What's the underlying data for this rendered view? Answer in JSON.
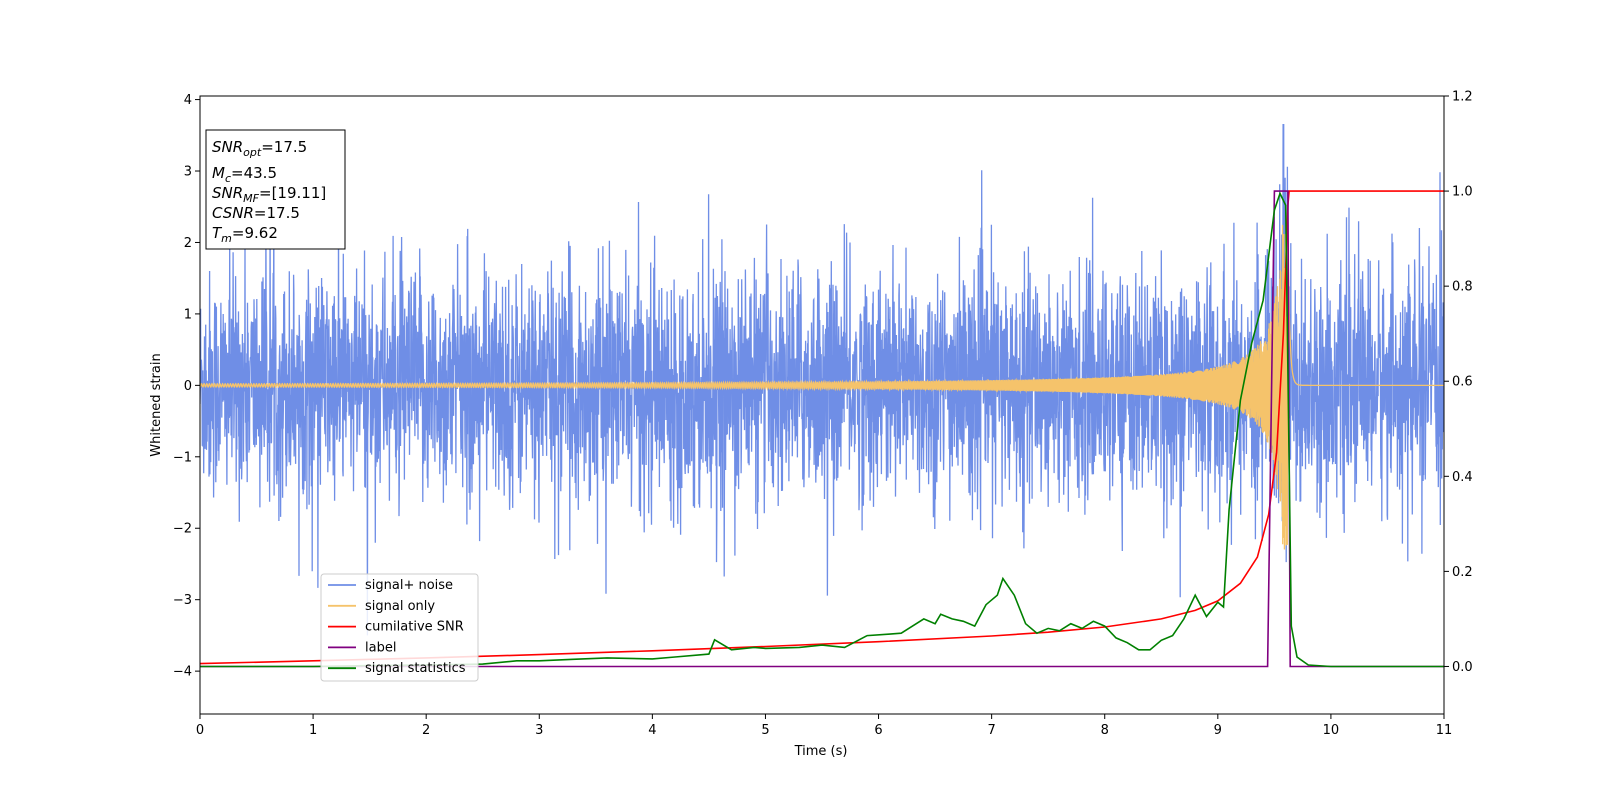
{
  "chart_data": {
    "type": "line",
    "xlabel": "Time (s)",
    "ylabel": "Whitened strain",
    "xlim": [
      0,
      11
    ],
    "ylim_left": [
      -4.6,
      4.05
    ],
    "ylim_right": [
      -0.1,
      1.2
    ],
    "xticks": [
      "0",
      "1",
      "2",
      "3",
      "4",
      "5",
      "6",
      "7",
      "8",
      "9",
      "10",
      "11"
    ],
    "yticks_left": [
      "−4",
      "−3",
      "−2",
      "−1",
      "0",
      "1",
      "2",
      "3",
      "4"
    ],
    "yticks_right": [
      "0.0",
      "0.2",
      "0.4",
      "0.6",
      "0.8",
      "1.0",
      "1.2"
    ],
    "info_box": {
      "snr_opt": {
        "sym": "SNR",
        "sub": "opt",
        "value": "=17.5"
      },
      "mc": {
        "sym": "M",
        "sub": "c",
        "value": "=43.5"
      },
      "snr_mf": {
        "sym": "SNR",
        "sub": "MF",
        "value": "=[19.11]"
      },
      "csnr": {
        "sym": "CSNR",
        "value": "=17.5"
      },
      "tm": {
        "sym": "T",
        "sub": "m",
        "value": "=9.62"
      }
    },
    "legend_position": "lower-left",
    "series": [
      {
        "name": "signal+ noise",
        "axis": "left",
        "color": "#6f8ee6",
        "description_values": {
          "typical_amplitude": 1.0,
          "peak_max": 3.65,
          "peak_time": 9.58
        }
      },
      {
        "name": "signal only",
        "axis": "left",
        "color": "#f5c36b",
        "chirp": {
          "amplitude_early": 0.02,
          "amplitude_peak": 2.3,
          "merger_time": 9.62
        }
      },
      {
        "name": "cumilative SNR",
        "axis": "right",
        "color": "#ff0000",
        "x": [
          0,
          1,
          2,
          3,
          4,
          5,
          6,
          7,
          7.5,
          8,
          8.5,
          8.8,
          9,
          9.2,
          9.35,
          9.45,
          9.52,
          9.58,
          9.62,
          9.63,
          11
        ],
        "y": [
          0.006,
          0.012,
          0.018,
          0.025,
          0.033,
          0.042,
          0.052,
          0.064,
          0.072,
          0.083,
          0.1,
          0.118,
          0.138,
          0.175,
          0.23,
          0.32,
          0.45,
          0.7,
          0.97,
          1.0,
          1.0
        ]
      },
      {
        "name": "label",
        "axis": "right",
        "color": "#800080",
        "x": [
          0,
          9.44,
          9.5,
          9.62,
          9.64,
          11
        ],
        "y": [
          0,
          0,
          1.0,
          1.0,
          0,
          0
        ]
      },
      {
        "name": "signal statistics",
        "axis": "right",
        "color": "#008000",
        "x": [
          0,
          0.5,
          1,
          1.5,
          2,
          2.5,
          2.8,
          3,
          3.3,
          3.6,
          4,
          4.2,
          4.5,
          4.55,
          4.7,
          4.9,
          5.0,
          5.3,
          5.5,
          5.7,
          5.9,
          6.1,
          6.2,
          6.3,
          6.4,
          6.5,
          6.55,
          6.65,
          6.75,
          6.85,
          6.95,
          7.05,
          7.1,
          7.2,
          7.3,
          7.4,
          7.5,
          7.6,
          7.7,
          7.8,
          7.9,
          8.0,
          8.1,
          8.2,
          8.3,
          8.4,
          8.5,
          8.6,
          8.7,
          8.8,
          8.9,
          9.0,
          9.05,
          9.1,
          9.2,
          9.3,
          9.4,
          9.5,
          9.55,
          9.6,
          9.65,
          9.7,
          9.8,
          10,
          11
        ],
        "y": [
          0.0,
          0.0,
          0.0,
          0.002,
          0.003,
          0.005,
          0.012,
          0.012,
          0.015,
          0.018,
          0.016,
          0.02,
          0.026,
          0.056,
          0.035,
          0.04,
          0.038,
          0.04,
          0.045,
          0.04,
          0.065,
          0.068,
          0.07,
          0.085,
          0.1,
          0.09,
          0.11,
          0.1,
          0.095,
          0.085,
          0.13,
          0.15,
          0.185,
          0.15,
          0.09,
          0.07,
          0.08,
          0.075,
          0.09,
          0.08,
          0.095,
          0.085,
          0.06,
          0.05,
          0.035,
          0.035,
          0.055,
          0.065,
          0.1,
          0.15,
          0.105,
          0.135,
          0.125,
          0.33,
          0.56,
          0.68,
          0.77,
          0.96,
          0.995,
          0.97,
          0.085,
          0.02,
          0.003,
          0.0,
          0.0
        ]
      }
    ]
  }
}
